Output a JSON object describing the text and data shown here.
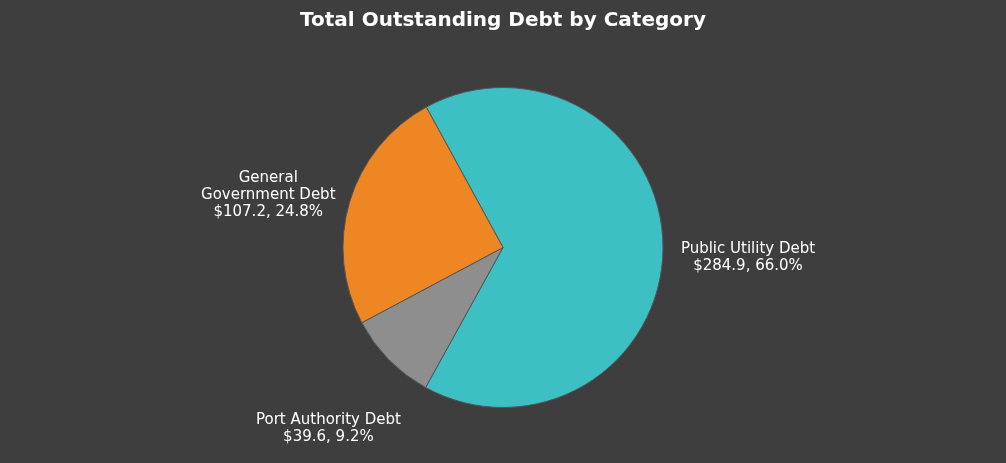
{
  "chart_data": {
    "type": "pie",
    "title": "Total Outstanding Debt by Category",
    "categories": [
      "Public Utility Debt",
      "Port Authority Debt",
      "General Government Debt"
    ],
    "values": [
      284.9,
      39.6,
      107.2
    ],
    "colors": [
      "#3cc0c4",
      "#8e8e8e",
      "#ee8624"
    ],
    "value_labels": [
      "$284.9, 66.0%",
      "$39.6, 9.2%",
      "$107.2, 24.8%"
    ],
    "legend": false
  }
}
